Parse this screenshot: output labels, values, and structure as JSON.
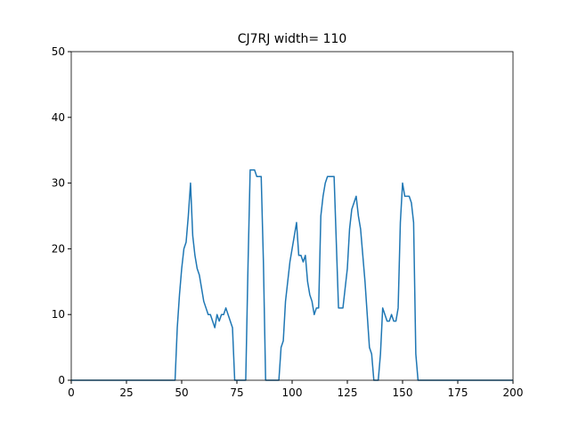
{
  "chart_data": {
    "type": "line",
    "title": "CJ7RJ width= 110",
    "x": [
      0,
      47,
      48,
      49,
      50,
      51,
      52,
      53,
      54,
      55,
      56,
      57,
      58,
      59,
      60,
      61,
      62,
      63,
      64,
      65,
      66,
      67,
      68,
      69,
      70,
      71,
      72,
      73,
      74,
      79,
      80,
      81,
      82,
      83,
      84,
      85,
      86,
      87,
      88,
      94,
      95,
      96,
      97,
      98,
      99,
      100,
      101,
      102,
      103,
      104,
      105,
      106,
      107,
      108,
      109,
      110,
      111,
      112,
      113,
      114,
      115,
      116,
      117,
      118,
      119,
      120,
      121,
      122,
      123,
      124,
      125,
      126,
      127,
      128,
      129,
      130,
      131,
      132,
      133,
      134,
      135,
      136,
      137,
      139,
      140,
      141,
      142,
      143,
      144,
      145,
      146,
      147,
      148,
      149,
      150,
      151,
      152,
      153,
      154,
      155,
      156,
      157,
      200
    ],
    "series": [
      {
        "color": "#1f77b4",
        "values": [
          0,
          0,
          8,
          13,
          17,
          20,
          21,
          25,
          30,
          22,
          19,
          17,
          16,
          14,
          12,
          11,
          10,
          10,
          9,
          8,
          10,
          9,
          10,
          10,
          11,
          10,
          9,
          8,
          0,
          0,
          17,
          32,
          32,
          32,
          31,
          31,
          31,
          18,
          0,
          0,
          5,
          6,
          12,
          15,
          18,
          20,
          22,
          24,
          19,
          19,
          18,
          19,
          15,
          13,
          12,
          10,
          11,
          11,
          25,
          28,
          30,
          31,
          31,
          31,
          31,
          21,
          11,
          11,
          11,
          14,
          17,
          23,
          26,
          27,
          28,
          25,
          23,
          19,
          15,
          10,
          5,
          4,
          0,
          0,
          4,
          11,
          10,
          9,
          9,
          10,
          9,
          9,
          11,
          24,
          30,
          28,
          28,
          28,
          27,
          24,
          4,
          0,
          0
        ]
      }
    ],
    "xlim": [
      0,
      200
    ],
    "xticks": [
      0,
      25,
      50,
      75,
      100,
      125,
      150,
      175,
      200
    ],
    "ylim": [
      0,
      50
    ],
    "yticks": [
      0,
      10,
      20,
      30,
      40,
      50
    ]
  }
}
